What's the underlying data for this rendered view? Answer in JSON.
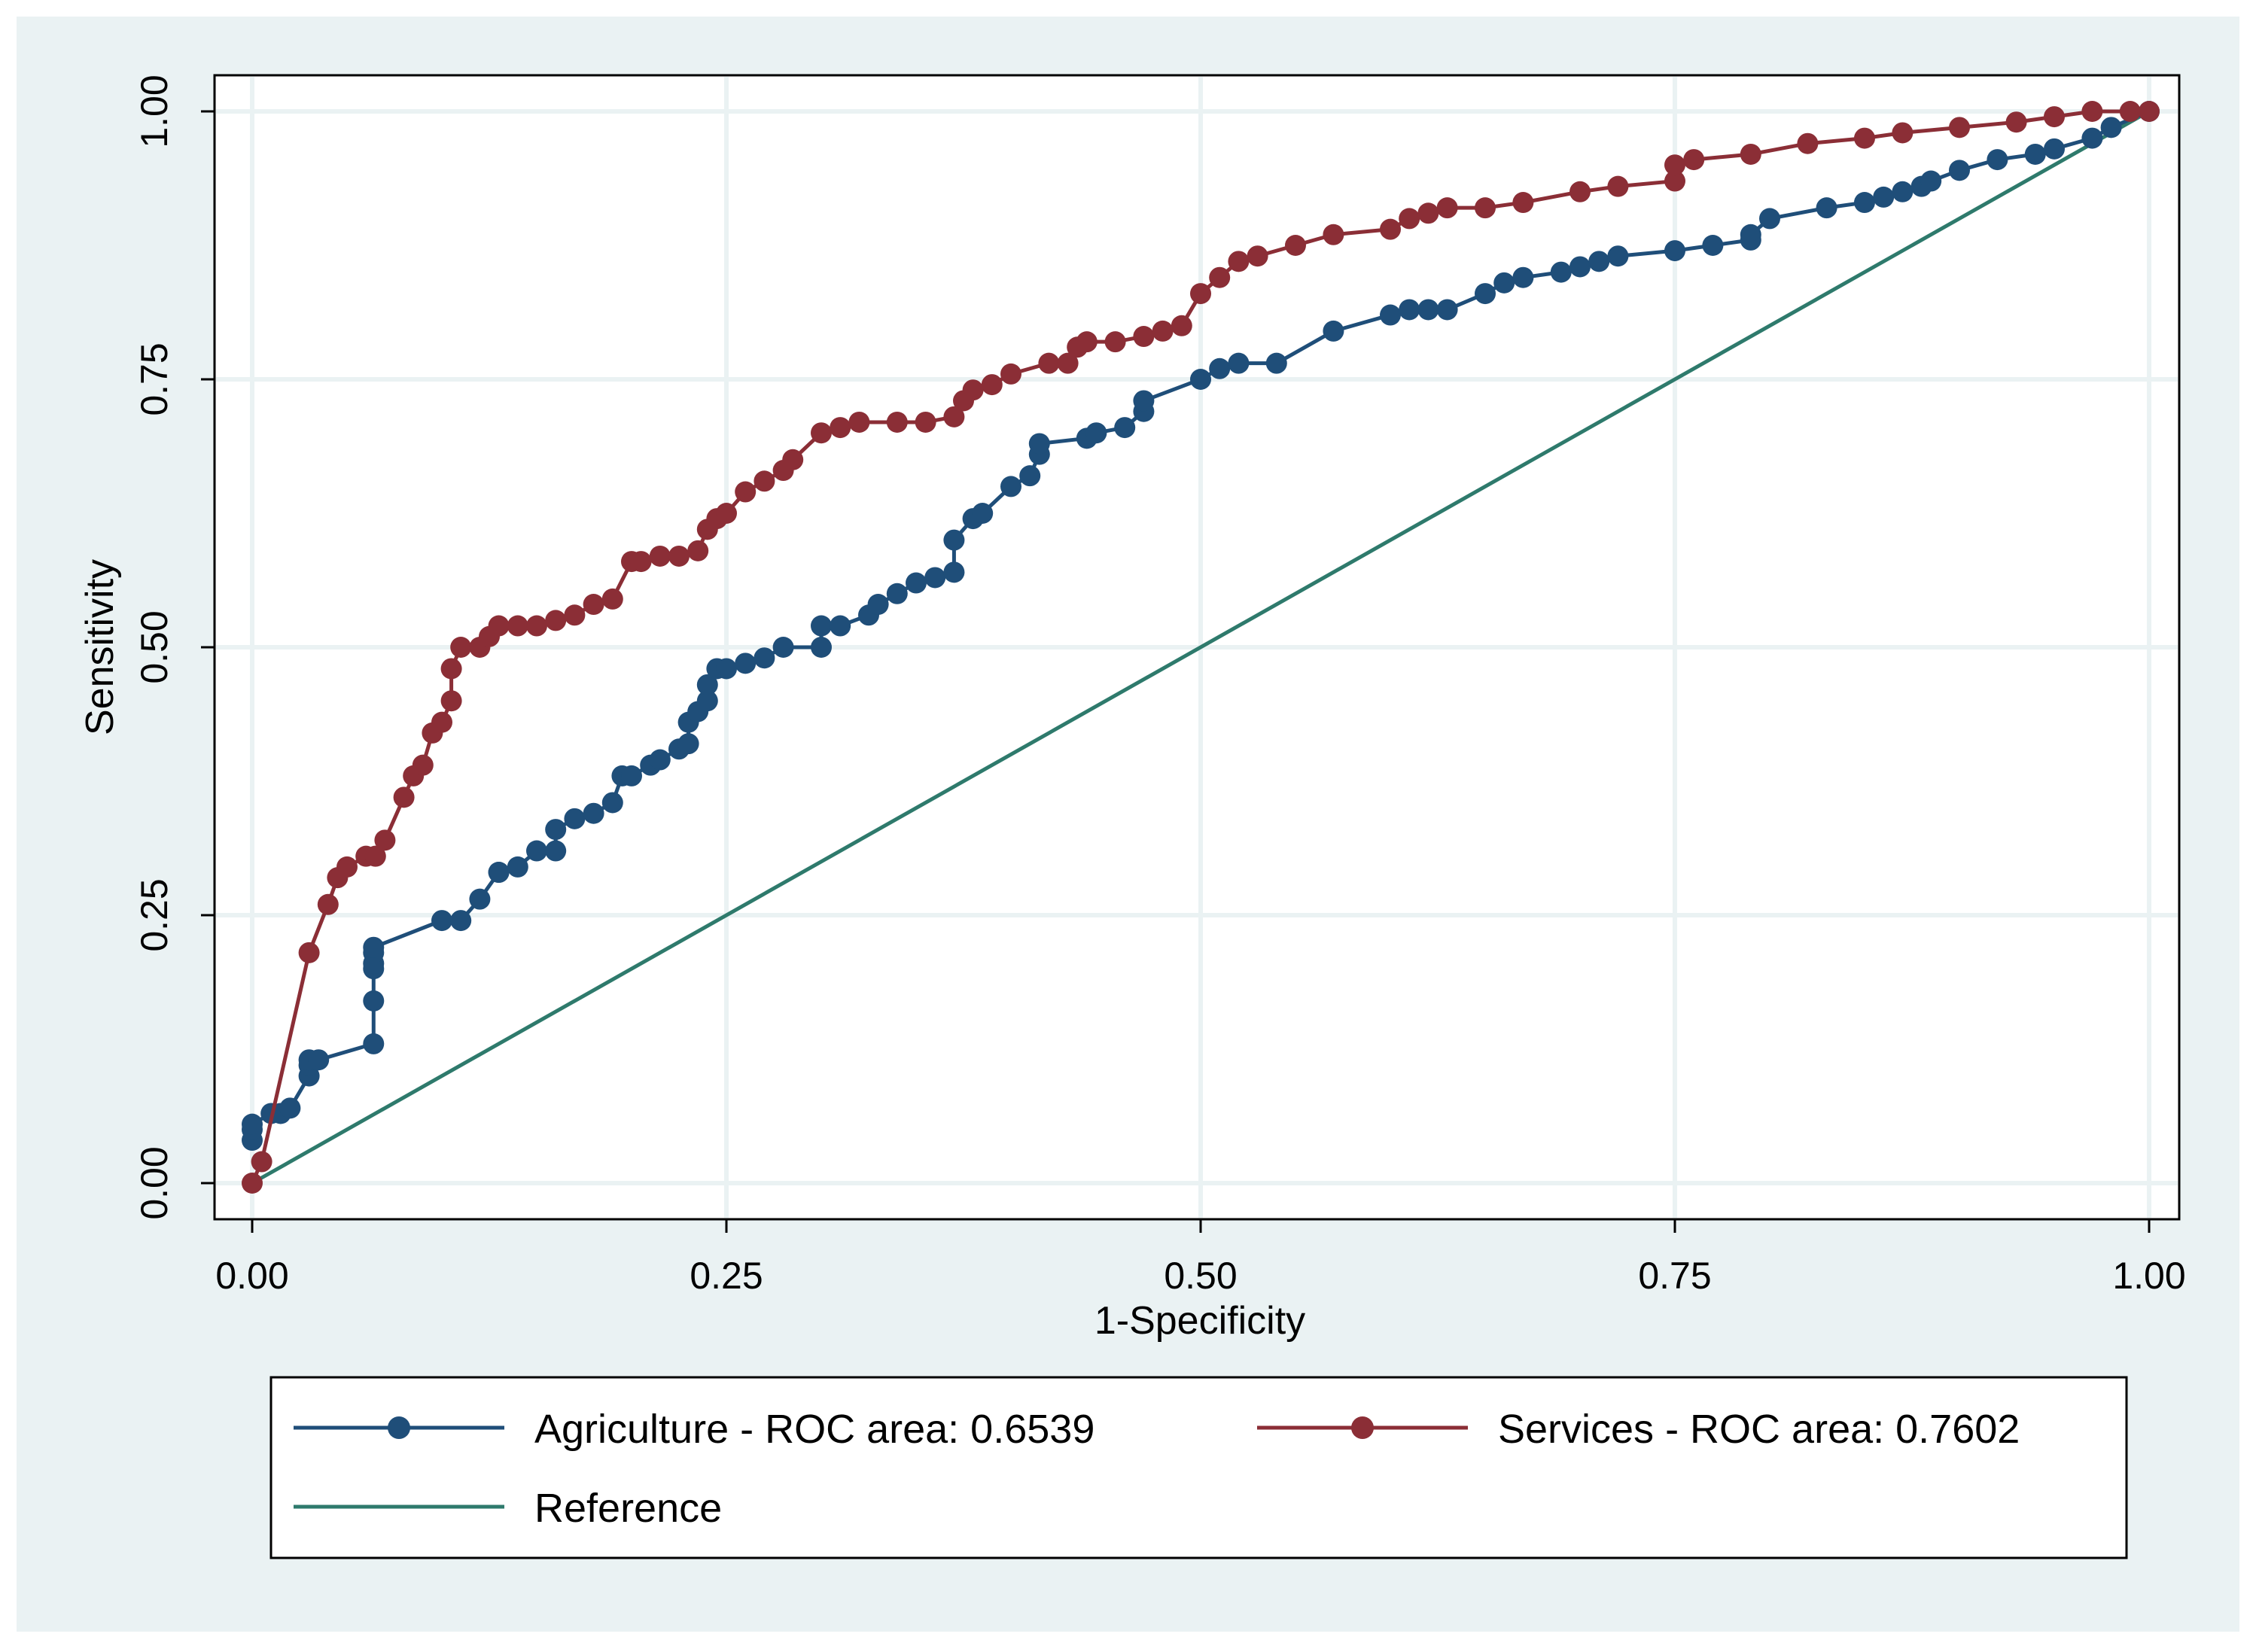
{
  "chart_data": {
    "type": "line",
    "title": "",
    "xlabel": "1-Specificity",
    "ylabel": "Sensitivity",
    "xlim": [
      0,
      1
    ],
    "ylim": [
      0,
      1
    ],
    "xticks": [
      0,
      0.25,
      0.5,
      0.75,
      1
    ],
    "yticks": [
      0,
      0.25,
      0.5,
      0.75,
      1
    ],
    "xtick_labels": [
      "0.00",
      "0.25",
      "0.50",
      "0.75",
      "1.00"
    ],
    "ytick_labels": [
      "0.00",
      "0.25",
      "0.50",
      "0.75",
      "1.00"
    ],
    "grid": true,
    "legend_position": "bottom",
    "series": [
      {
        "name": "Agriculture - ROC area: 0.6539",
        "color": "#1f4e79",
        "marker": "circle",
        "x": [
          0,
          0,
          0,
          0.01,
          0.015,
          0.02,
          0.03,
          0.03,
          0.03,
          0.035,
          0.064,
          0.064,
          0.064,
          0.064,
          0.064,
          0.064,
          0.1,
          0.11,
          0.12,
          0.13,
          0.13,
          0.14,
          0.15,
          0.16,
          0.16,
          0.17,
          0.18,
          0.19,
          0.195,
          0.2,
          0.21,
          0.215,
          0.225,
          0.23,
          0.23,
          0.235,
          0.24,
          0.24,
          0.245,
          0.25,
          0.26,
          0.27,
          0.28,
          0.3,
          0.3,
          0.31,
          0.325,
          0.33,
          0.34,
          0.35,
          0.36,
          0.37,
          0.37,
          0.38,
          0.385,
          0.4,
          0.41,
          0.415,
          0.415,
          0.44,
          0.445,
          0.46,
          0.47,
          0.47,
          0.5,
          0.51,
          0.52,
          0.54,
          0.57,
          0.6,
          0.61,
          0.62,
          0.63,
          0.65,
          0.66,
          0.67,
          0.69,
          0.7,
          0.71,
          0.72,
          0.75,
          0.77,
          0.79,
          0.79,
          0.8,
          0.83,
          0.85,
          0.86,
          0.87,
          0.88,
          0.885,
          0.9,
          0.92,
          0.94,
          0.95,
          0.97,
          0.98,
          1.0
        ],
        "y": [
          0.04,
          0.05,
          0.055,
          0.065,
          0.065,
          0.07,
          0.1,
          0.11,
          0.115,
          0.115,
          0.13,
          0.17,
          0.2,
          0.205,
          0.215,
          0.22,
          0.245,
          0.245,
          0.265,
          0.29,
          0.29,
          0.295,
          0.31,
          0.31,
          0.33,
          0.34,
          0.345,
          0.355,
          0.38,
          0.38,
          0.39,
          0.395,
          0.405,
          0.41,
          0.43,
          0.44,
          0.45,
          0.465,
          0.48,
          0.48,
          0.485,
          0.49,
          0.5,
          0.5,
          0.52,
          0.52,
          0.53,
          0.54,
          0.55,
          0.56,
          0.565,
          0.57,
          0.6,
          0.62,
          0.625,
          0.65,
          0.66,
          0.68,
          0.69,
          0.695,
          0.7,
          0.705,
          0.72,
          0.73,
          0.75,
          0.76,
          0.765,
          0.765,
          0.795,
          0.81,
          0.815,
          0.815,
          0.815,
          0.83,
          0.84,
          0.845,
          0.85,
          0.855,
          0.86,
          0.865,
          0.87,
          0.875,
          0.88,
          0.885,
          0.9,
          0.91,
          0.915,
          0.92,
          0.925,
          0.93,
          0.935,
          0.945,
          0.955,
          0.96,
          0.965,
          0.975,
          0.985,
          1.0
        ]
      },
      {
        "name": "Services - ROC area: 0.7602",
        "color": "#8b2e36",
        "marker": "circle",
        "x": [
          0,
          0.005,
          0.03,
          0.04,
          0.045,
          0.05,
          0.06,
          0.065,
          0.07,
          0.08,
          0.085,
          0.09,
          0.095,
          0.1,
          0.105,
          0.105,
          0.11,
          0.12,
          0.125,
          0.13,
          0.14,
          0.15,
          0.16,
          0.17,
          0.18,
          0.19,
          0.2,
          0.205,
          0.215,
          0.225,
          0.235,
          0.24,
          0.245,
          0.25,
          0.26,
          0.27,
          0.28,
          0.285,
          0.3,
          0.31,
          0.32,
          0.34,
          0.355,
          0.37,
          0.375,
          0.38,
          0.39,
          0.4,
          0.42,
          0.43,
          0.435,
          0.44,
          0.455,
          0.47,
          0.48,
          0.49,
          0.5,
          0.51,
          0.52,
          0.53,
          0.55,
          0.57,
          0.6,
          0.61,
          0.62,
          0.63,
          0.65,
          0.67,
          0.7,
          0.72,
          0.75,
          0.75,
          0.76,
          0.79,
          0.82,
          0.85,
          0.87,
          0.9,
          0.93,
          0.95,
          0.97,
          0.99,
          1.0
        ],
        "y": [
          0.0,
          0.02,
          0.215,
          0.26,
          0.285,
          0.295,
          0.305,
          0.305,
          0.32,
          0.36,
          0.38,
          0.39,
          0.42,
          0.43,
          0.45,
          0.48,
          0.5,
          0.5,
          0.51,
          0.52,
          0.52,
          0.52,
          0.525,
          0.53,
          0.54,
          0.545,
          0.58,
          0.58,
          0.585,
          0.585,
          0.59,
          0.61,
          0.62,
          0.625,
          0.645,
          0.655,
          0.665,
          0.675,
          0.7,
          0.705,
          0.71,
          0.71,
          0.71,
          0.715,
          0.73,
          0.74,
          0.745,
          0.755,
          0.765,
          0.765,
          0.78,
          0.785,
          0.785,
          0.79,
          0.795,
          0.8,
          0.83,
          0.845,
          0.86,
          0.865,
          0.875,
          0.885,
          0.89,
          0.9,
          0.905,
          0.91,
          0.91,
          0.915,
          0.925,
          0.93,
          0.935,
          0.95,
          0.955,
          0.96,
          0.97,
          0.975,
          0.98,
          0.985,
          0.99,
          0.995,
          1.0,
          1.0,
          1.0
        ]
      },
      {
        "name": "Reference",
        "color": "#2e7a6c",
        "marker": "none",
        "x": [
          0,
          1
        ],
        "y": [
          0,
          1
        ]
      }
    ]
  }
}
